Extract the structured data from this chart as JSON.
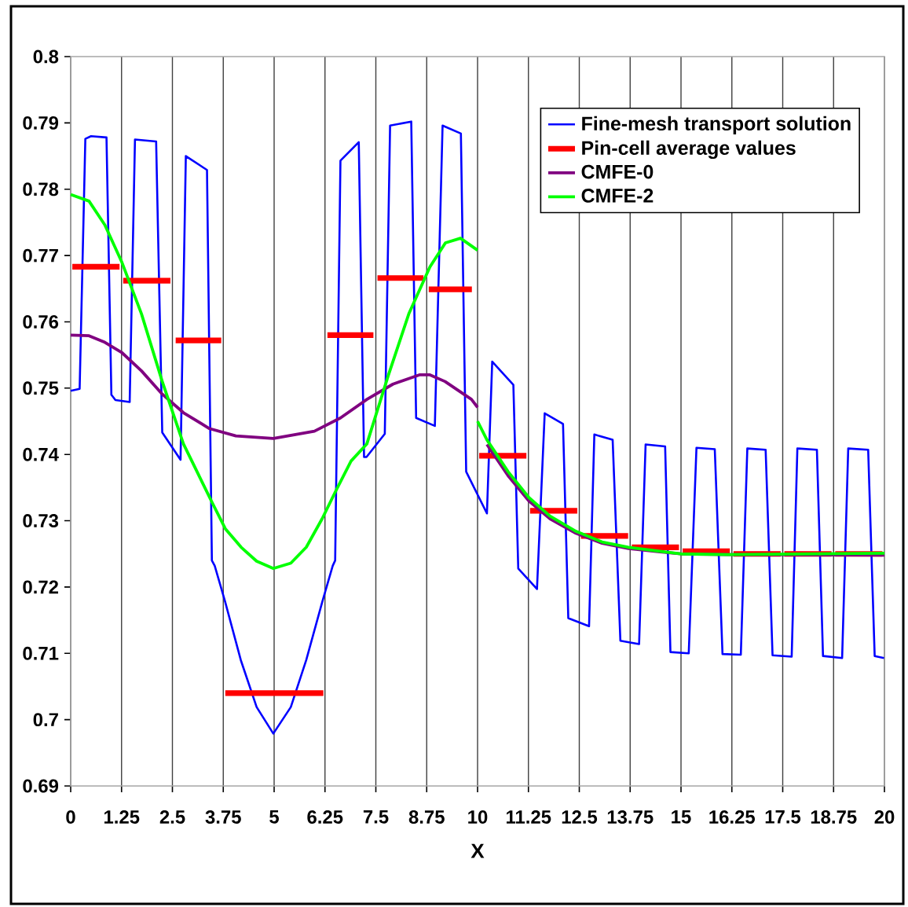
{
  "chart_data": {
    "type": "line",
    "xlabel": "X",
    "xlim": [
      0,
      20
    ],
    "ylim": [
      0.69,
      0.8
    ],
    "xticks": [
      0,
      1.25,
      2.5,
      3.75,
      5,
      6.25,
      7.5,
      8.75,
      10,
      11.25,
      12.5,
      13.75,
      15,
      16.25,
      17.5,
      18.75,
      20
    ],
    "yticks": [
      0.69,
      0.7,
      0.71,
      0.72,
      0.73,
      0.74,
      0.75,
      0.76,
      0.77,
      0.78,
      0.79,
      0.8
    ],
    "grid": "x",
    "legend": "top right",
    "marker": "none",
    "line_style": "solid",
    "series": [
      {
        "name": "Fine-mesh transport solution",
        "color": "#0000ff",
        "x": [
          0,
          0.22,
          0.36,
          0.5,
          0.88,
          1.0,
          1.1,
          1.45,
          1.58,
          2.1,
          2.25,
          2.7,
          2.83,
          3.35,
          3.47,
          3.54,
          3.8,
          4.18,
          4.57,
          4.98,
          5.41,
          5.79,
          6.18,
          6.44,
          6.5,
          6.63,
          7.08,
          7.21,
          7.27,
          7.72,
          7.85,
          8.37,
          8.49,
          8.95,
          9.14,
          9.59,
          9.72,
          10.23,
          10.36,
          10.88,
          11.0,
          11.46,
          11.65,
          12.1,
          12.23,
          12.74,
          12.87,
          13.32,
          13.51,
          13.97,
          14.13,
          14.61,
          14.74,
          15.19,
          15.38,
          15.83,
          16.02,
          16.47,
          16.63,
          17.08,
          17.25,
          17.72,
          17.86,
          18.34,
          18.49,
          18.96,
          19.11,
          19.6,
          19.76,
          19.99
        ],
        "values": [
          0.7496,
          0.7499,
          0.7876,
          0.788,
          0.7878,
          0.749,
          0.7482,
          0.7479,
          0.7875,
          0.7872,
          0.7433,
          0.7392,
          0.785,
          0.7829,
          0.724,
          0.7232,
          0.7177,
          0.709,
          0.7019,
          0.6979,
          0.7019,
          0.709,
          0.7177,
          0.7232,
          0.724,
          0.7843,
          0.7871,
          0.7396,
          0.7396,
          0.7431,
          0.7896,
          0.7902,
          0.7455,
          0.7443,
          0.7896,
          0.7884,
          0.7374,
          0.7311,
          0.754,
          0.7505,
          0.7228,
          0.7197,
          0.7462,
          0.7446,
          0.7153,
          0.7141,
          0.743,
          0.7422,
          0.7119,
          0.7114,
          0.7415,
          0.7412,
          0.7102,
          0.71,
          0.741,
          0.7408,
          0.7099,
          0.7098,
          0.7409,
          0.7407,
          0.7097,
          0.7095,
          0.7409,
          0.7407,
          0.7096,
          0.7093,
          0.7409,
          0.7407,
          0.7096,
          0.7093
        ]
      },
      {
        "name": "Pin-cell average values",
        "color": "#ff0000",
        "x": [
          0.04,
          1.2,
          null,
          1.29,
          2.45,
          null,
          2.58,
          3.7,
          null,
          3.8,
          6.21,
          null,
          6.31,
          7.44,
          null,
          7.54,
          8.67,
          null,
          8.8,
          9.86,
          null,
          10.04,
          11.2,
          null,
          11.29,
          12.45,
          null,
          12.54,
          13.7,
          null,
          13.79,
          14.95,
          null,
          15.04,
          16.2,
          null,
          16.29,
          17.45,
          null,
          17.54,
          18.7,
          null,
          18.79,
          19.95
        ],
        "values": [
          0.7683,
          0.7683,
          null,
          0.7662,
          0.7662,
          null,
          0.7572,
          0.7572,
          null,
          0.704,
          0.704,
          null,
          0.758,
          0.758,
          null,
          0.7666,
          0.7666,
          null,
          0.7649,
          0.7649,
          null,
          0.7398,
          0.7398,
          null,
          0.7315,
          0.7315,
          null,
          0.7277,
          0.7277,
          null,
          0.726,
          0.726,
          null,
          0.7254,
          0.7254,
          null,
          0.725,
          0.725,
          null,
          0.725,
          0.725,
          null,
          0.725,
          0.725
        ]
      },
      {
        "name": "CMFE-0",
        "color": "#800080",
        "x": [
          0,
          0.45,
          0.84,
          1.25,
          1.74,
          2.25,
          2.77,
          3.41,
          4.06,
          4.98,
          5.99,
          6.63,
          7.28,
          7.92,
          8.57,
          8.83,
          9.2,
          9.85,
          10.0,
          null,
          10.23,
          10.75,
          11.26,
          11.78,
          12.42,
          13.06,
          13.71,
          14.48,
          14.99,
          16.15,
          20
        ],
        "values": [
          0.758,
          0.7579,
          0.7569,
          0.7554,
          0.7526,
          0.7491,
          0.7463,
          0.7439,
          0.7428,
          0.7424,
          0.7435,
          0.7455,
          0.7483,
          0.7506,
          0.752,
          0.752,
          0.751,
          0.7483,
          0.7471,
          null,
          0.7415,
          0.7368,
          0.733,
          0.7303,
          0.7281,
          0.7266,
          0.7258,
          0.7253,
          0.725,
          0.7249,
          0.7248
        ]
      },
      {
        "name": "CMFE-2",
        "color": "#00ff00",
        "x": [
          0,
          0.45,
          0.84,
          1.25,
          1.74,
          2.25,
          2.77,
          3.48,
          3.8,
          4.19,
          4.57,
          4.98,
          5.41,
          5.79,
          6.18,
          6.5,
          6.89,
          7.28,
          7.8,
          8.31,
          8.83,
          9.21,
          9.58,
          10.0,
          null,
          10.0,
          10.23,
          10.75,
          11.26,
          11.78,
          12.42,
          13.06,
          13.71,
          14.48,
          14.99,
          16.15,
          20
        ],
        "values": [
          0.7792,
          0.7782,
          0.7746,
          0.7691,
          0.7612,
          0.751,
          0.7416,
          0.7327,
          0.7288,
          0.726,
          0.7239,
          0.7228,
          0.7236,
          0.726,
          0.7303,
          0.7343,
          0.739,
          0.7416,
          0.7518,
          0.7612,
          0.7683,
          0.7719,
          0.7726,
          0.7708,
          null,
          0.745,
          0.7422,
          0.7374,
          0.7335,
          0.7307,
          0.7284,
          0.7268,
          0.726,
          0.7254,
          0.725,
          0.7249,
          0.7251
        ]
      }
    ]
  }
}
